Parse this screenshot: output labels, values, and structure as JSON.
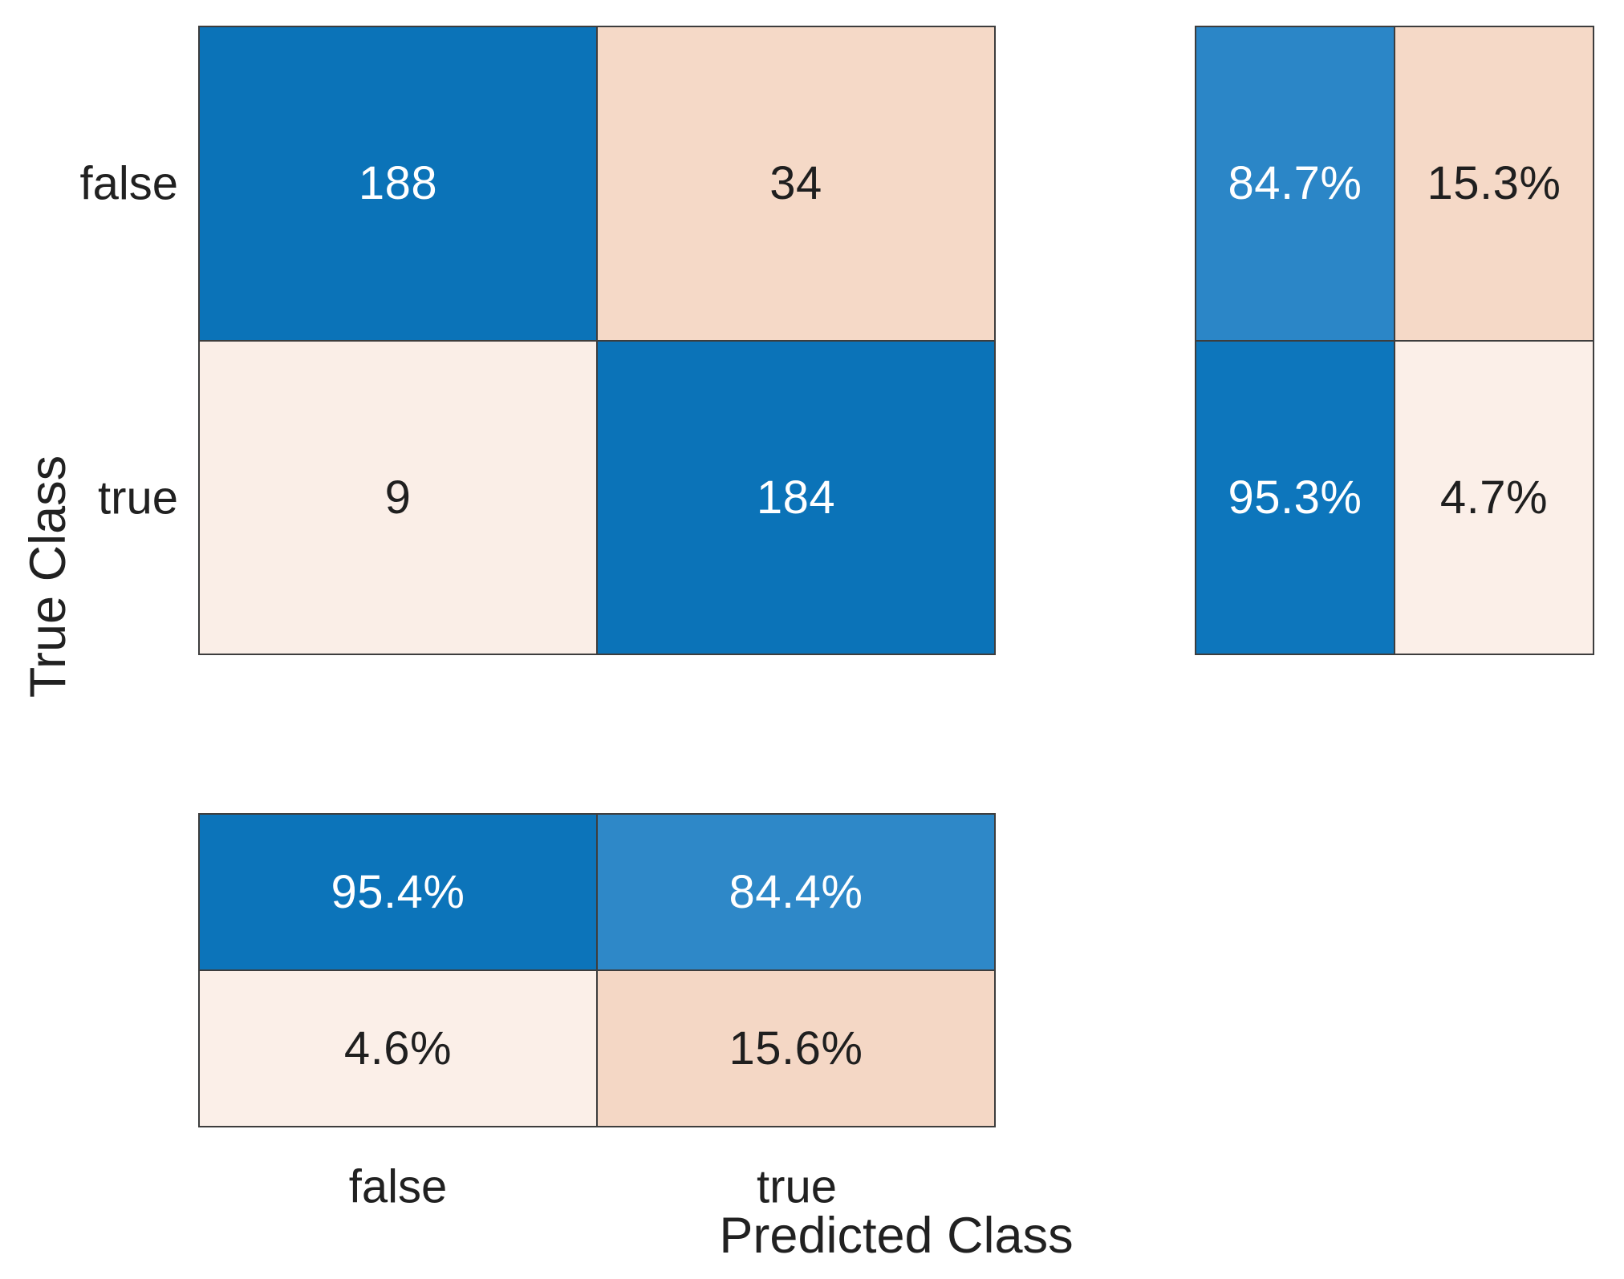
{
  "figure": {
    "background": "#ffffff",
    "xlabel": "Predicted Class",
    "ylabel": "True Class",
    "x_ticks": {
      "false": "false",
      "true": "true"
    },
    "y_ticks": {
      "false": "false",
      "true": "true"
    },
    "gridline_color": "#3d3d3d"
  },
  "matrix": {
    "cells": [
      {
        "label": "188",
        "style": "background:#0b73b8;color:#ffffff"
      },
      {
        "label": "34",
        "style": "background:#f5d9c7;color:#1f1f1f"
      },
      {
        "label": "9",
        "style": "background:#faeee7;color:#1f1f1f"
      },
      {
        "label": "184",
        "style": "background:#0b73b8;color:#ffffff"
      }
    ]
  },
  "row_summary": {
    "cells": [
      {
        "label": "84.7%",
        "style": "background:#2b86c7;color:#ffffff"
      },
      {
        "label": "15.3%",
        "style": "background:#f5d9c7;color:#1f1f1f"
      },
      {
        "label": "95.3%",
        "style": "background:#0d76bc;color:#ffffff"
      },
      {
        "label": "4.7%",
        "style": "background:#fbefe8;color:#1f1f1f"
      }
    ]
  },
  "column_summary": {
    "cells": [
      {
        "label": "95.4%",
        "style": "background:#0c74ba;color:#ffffff"
      },
      {
        "label": "84.4%",
        "style": "background:#2e88c8;color:#ffffff"
      },
      {
        "label": "4.6%",
        "style": "background:#fbefe8;color:#1f1f1f"
      },
      {
        "label": "15.6%",
        "style": "background:#f4d7c5;color:#1f1f1f"
      }
    ]
  },
  "chart_data": {
    "type": "heatmap",
    "subtype": "confusion-matrix",
    "title": "",
    "xlabel": "Predicted Class",
    "ylabel": "True Class",
    "classes": [
      "false",
      "true"
    ],
    "matrix_rows_true_class": [
      "false",
      "true"
    ],
    "matrix_cols_predicted_class": [
      "false",
      "true"
    ],
    "matrix": [
      [
        188,
        34
      ],
      [
        9,
        184
      ]
    ],
    "row_summary_percent": [
      [
        84.7,
        15.3
      ],
      [
        95.3,
        4.7
      ]
    ],
    "column_summary_percent": [
      [
        95.4,
        84.4
      ],
      [
        4.6,
        15.6
      ]
    ],
    "legend": "none",
    "grid": "cell borders only",
    "diagonal_color": "#0b73b8",
    "off_diagonal_color": "#f5d9c7"
  }
}
